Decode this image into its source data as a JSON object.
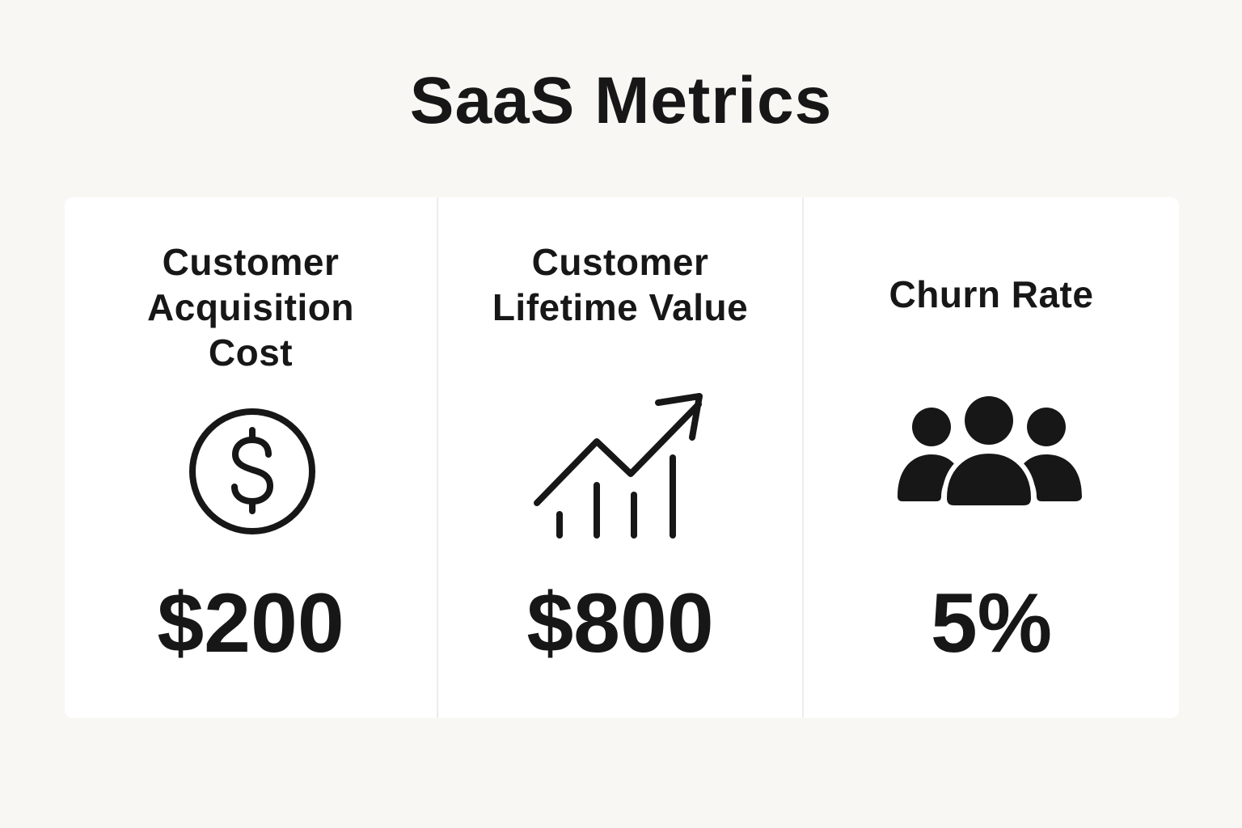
{
  "title": "SaaS Metrics",
  "colors": {
    "background": "#f8f7f3",
    "panel": "#ffffff",
    "text": "#171717",
    "divider": "#ececec"
  },
  "cards": [
    {
      "title_lines": [
        "Customer",
        "Acquisition",
        "Cost"
      ],
      "icon": "dollar-coin-icon",
      "value": "$200"
    },
    {
      "title_lines": [
        "Customer",
        "Lifetime Value"
      ],
      "icon": "growth-chart-icon",
      "value": "$800"
    },
    {
      "title_lines": [
        "Churn Rate"
      ],
      "icon": "users-group-icon",
      "value": "5%"
    }
  ]
}
